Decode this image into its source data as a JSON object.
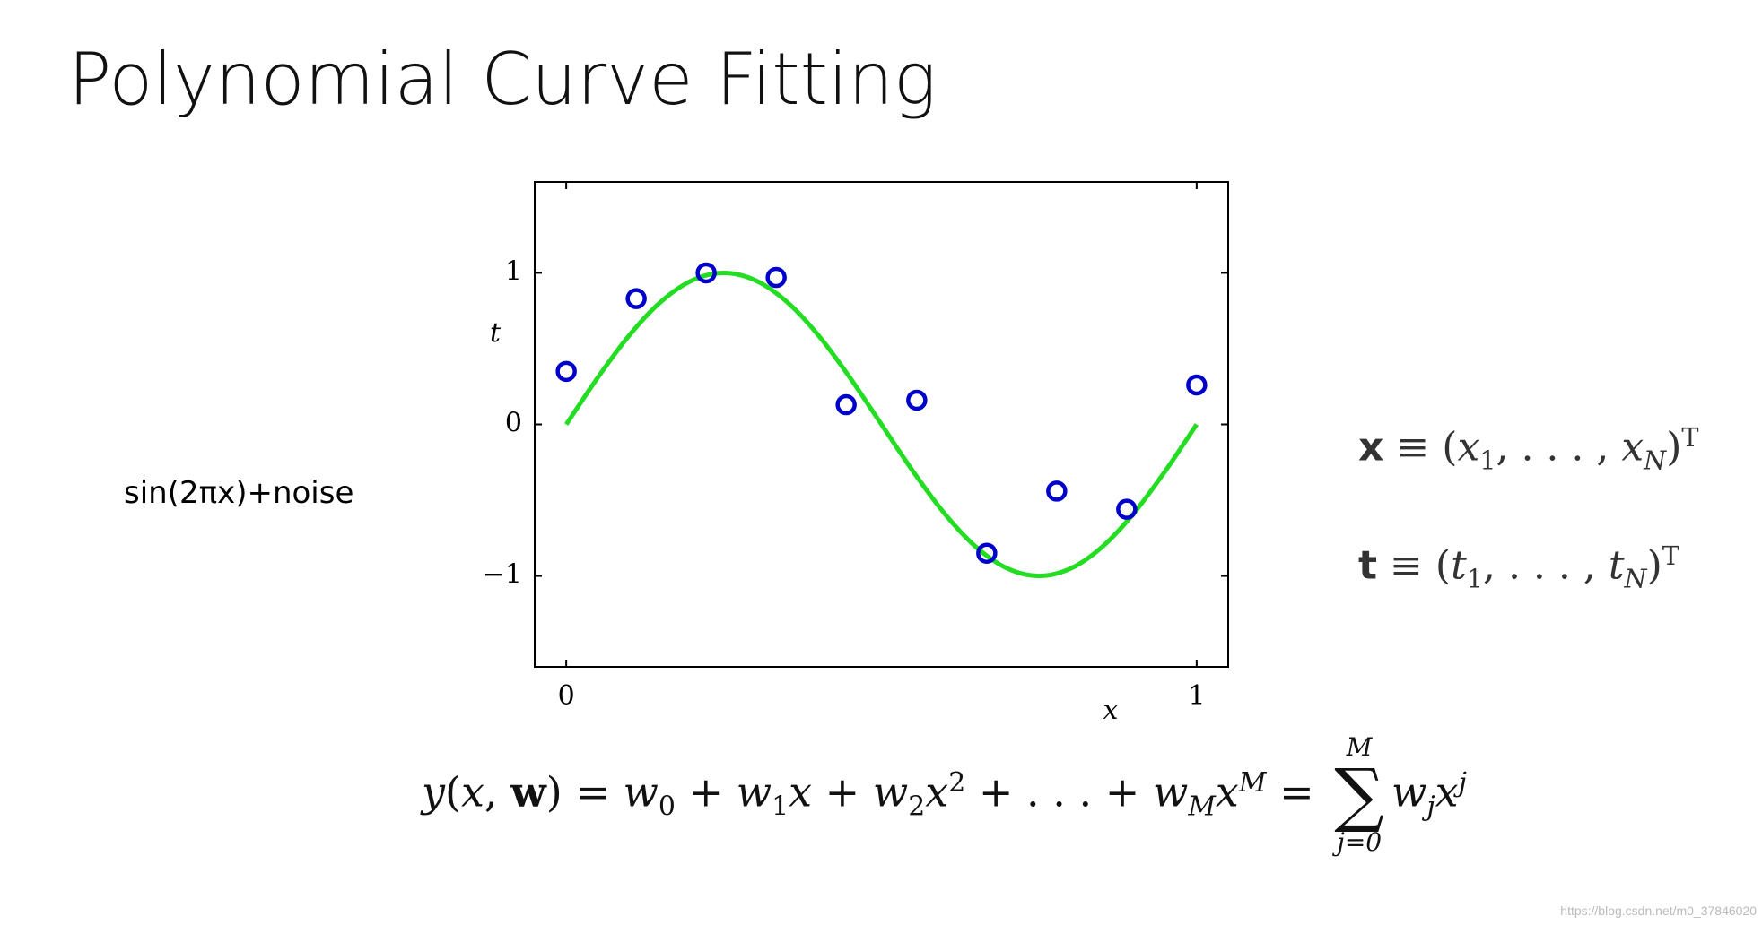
{
  "title": "Polynomial Curve Fitting",
  "annotation": "sin(2πx)+noise",
  "definitions": [
    [
      "x",
      "≡",
      "(",
      "x",
      "1",
      ", . . . , ",
      "x",
      "N",
      ")",
      "T"
    ],
    [
      "t",
      "≡",
      "(",
      "t",
      "1",
      ", . . . , ",
      "t",
      "N",
      ")",
      "T"
    ]
  ],
  "equation": [
    "y",
    "(",
    "x",
    ", ",
    "w",
    ") = ",
    "w",
    "0",
    " + ",
    "w",
    "1",
    "x",
    " + ",
    "w",
    "2",
    "x",
    "2",
    " + . . . + ",
    "w",
    "M",
    "x",
    "M",
    " = ",
    "∑",
    "M",
    "j=0",
    "w",
    "j",
    "x",
    "j"
  ],
  "watermark": "https://blog.csdn.net/m0_37846020",
  "chart_data": {
    "type": "scatter",
    "x_label": "x",
    "y_label": "t",
    "xlim": [
      -0.05,
      1.05
    ],
    "ylim": [
      -1.6,
      1.6
    ],
    "xticks": [
      0,
      1
    ],
    "yticks": [
      {
        "value": -1,
        "label": "−1"
      },
      0,
      1
    ],
    "series": [
      {
        "type": "scatter",
        "color": "#0000cc",
        "x": [
          0,
          0.111,
          0.222,
          0.333,
          0.444,
          0.556,
          0.667,
          0.778,
          0.889,
          1
        ],
        "values": [
          0.35,
          0.83,
          1.0,
          0.97,
          0.13,
          0.16,
          -0.85,
          -0.44,
          -0.56,
          0.26
        ]
      },
      {
        "type": "line",
        "color": "#22dd22",
        "x": [
          0,
          0.05,
          0.1,
          0.15,
          0.2,
          0.25,
          0.3,
          0.35,
          0.4,
          0.45,
          0.5,
          0.55,
          0.6,
          0.65,
          0.7,
          0.75,
          0.8,
          0.85,
          0.9,
          0.95,
          1
        ],
        "values": [
          0,
          0.309,
          0.588,
          0.809,
          0.951,
          1,
          0.951,
          0.809,
          0.588,
          0.309,
          0,
          -0.309,
          -0.588,
          -0.809,
          -0.951,
          -1,
          -0.951,
          -0.809,
          -0.588,
          -0.309,
          0
        ]
      }
    ]
  }
}
